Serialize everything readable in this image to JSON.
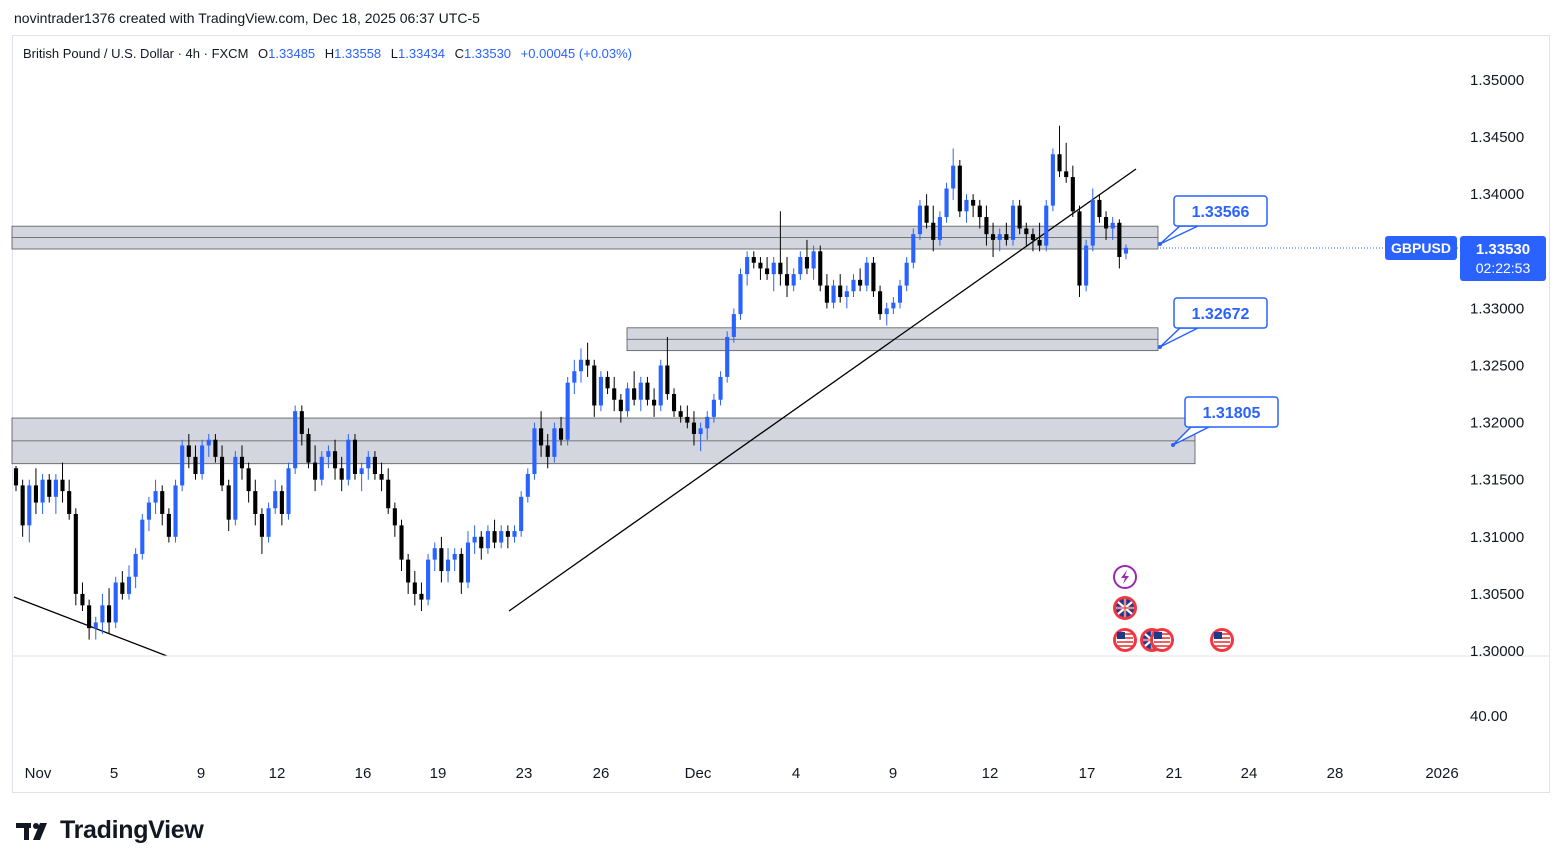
{
  "header": {
    "credit": "novintrader1376 created with TradingView.com, Dec 18, 2025 06:37 UTC-5"
  },
  "legend": {
    "symbol_desc": "British Pound / U.S. Dollar · 4h · FXCM",
    "open_label": "O",
    "open": "1.33485",
    "high_label": "H",
    "high": "1.33558",
    "low_label": "L",
    "low": "1.33434",
    "close_label": "C",
    "close": "1.33530",
    "change": "+0.00045 (+0.03%)"
  },
  "price_axis": {
    "ticks": [
      "1.35000",
      "1.34500",
      "1.34000",
      "1.33500",
      "1.33000",
      "1.32500",
      "1.32000",
      "1.31500",
      "1.31000",
      "1.30500",
      "1.30000"
    ],
    "indicator_tick": "40.00"
  },
  "last_price": {
    "symbol": "GBPUSD",
    "price": "1.33530",
    "countdown": "02:22:53"
  },
  "time_axis": [
    "Nov",
    "5",
    "9",
    "12",
    "16",
    "19",
    "23",
    "26",
    "Dec",
    "4",
    "9",
    "12",
    "17",
    "21",
    "24",
    "28",
    "2026"
  ],
  "annotations": [
    {
      "label": "1.33566",
      "value": 1.33566
    },
    {
      "label": "1.32672",
      "value": 1.32672
    },
    {
      "label": "1.31805",
      "value": 1.31805
    }
  ],
  "zones": [
    {
      "name": "upper-resistance-zone",
      "top": 1.3372,
      "bottom": 1.3352
    },
    {
      "name": "middle-support-zone",
      "top": 1.3283,
      "bottom": 1.3263
    },
    {
      "name": "lower-support-zone",
      "top": 1.3204,
      "bottom": 1.3164
    }
  ],
  "event_icons": [
    "lightning-icon",
    "uk-flag-icon",
    "us-flag-icon",
    "uk-flag-icon",
    "us-flag-icon",
    "us-flag-icon"
  ],
  "brand": {
    "name": "TradingView"
  },
  "colors": {
    "up": "#2962ff",
    "down": "#000000",
    "accent": "#2962ff",
    "zone": "#d1d4dc"
  },
  "chart_data": {
    "type": "candlestick",
    "title": "British Pound / U.S. Dollar · 4h · FXCM",
    "ylim": [
      1.2975,
      1.3525
    ],
    "ohlc": [
      [
        1.316,
        1.3162,
        1.314,
        1.3145
      ],
      [
        1.3145,
        1.315,
        1.31,
        1.311
      ],
      [
        1.311,
        1.315,
        1.3095,
        1.3145
      ],
      [
        1.3145,
        1.316,
        1.312,
        1.313
      ],
      [
        1.313,
        1.3155,
        1.312,
        1.315
      ],
      [
        1.315,
        1.3155,
        1.313,
        1.3135
      ],
      [
        1.3135,
        1.3155,
        1.312,
        1.315
      ],
      [
        1.315,
        1.3165,
        1.313,
        1.314
      ],
      [
        1.314,
        1.315,
        1.3115,
        1.312
      ],
      [
        1.312,
        1.3125,
        1.304,
        1.305
      ],
      [
        1.305,
        1.306,
        1.3035,
        1.304
      ],
      [
        1.304,
        1.3045,
        1.301,
        1.302
      ],
      [
        1.302,
        1.303,
        1.301,
        1.3025
      ],
      [
        1.3025,
        1.305,
        1.3015,
        1.304
      ],
      [
        1.304,
        1.3055,
        1.3015,
        1.3025
      ],
      [
        1.3025,
        1.3065,
        1.302,
        1.306
      ],
      [
        1.306,
        1.307,
        1.3045,
        1.305
      ],
      [
        1.305,
        1.3075,
        1.3045,
        1.3065
      ],
      [
        1.3065,
        1.309,
        1.3055,
        1.3085
      ],
      [
        1.3085,
        1.312,
        1.308,
        1.3115
      ],
      [
        1.3115,
        1.3135,
        1.3105,
        1.313
      ],
      [
        1.313,
        1.315,
        1.312,
        1.314
      ],
      [
        1.314,
        1.3145,
        1.311,
        1.312
      ],
      [
        1.312,
        1.3125,
        1.3095,
        1.31
      ],
      [
        1.31,
        1.315,
        1.3095,
        1.3145
      ],
      [
        1.3145,
        1.3185,
        1.314,
        1.318
      ],
      [
        1.318,
        1.319,
        1.316,
        1.317
      ],
      [
        1.317,
        1.318,
        1.315,
        1.3155
      ],
      [
        1.3155,
        1.3185,
        1.315,
        1.318
      ],
      [
        1.318,
        1.319,
        1.317,
        1.3185
      ],
      [
        1.3185,
        1.319,
        1.3165,
        1.317
      ],
      [
        1.317,
        1.318,
        1.314,
        1.3145
      ],
      [
        1.3145,
        1.315,
        1.3105,
        1.3115
      ],
      [
        1.3115,
        1.3175,
        1.311,
        1.317
      ],
      [
        1.317,
        1.318,
        1.315,
        1.316
      ],
      [
        1.316,
        1.3165,
        1.313,
        1.314
      ],
      [
        1.314,
        1.315,
        1.311,
        1.312
      ],
      [
        1.312,
        1.3125,
        1.3085,
        1.31
      ],
      [
        1.31,
        1.313,
        1.3095,
        1.3125
      ],
      [
        1.3125,
        1.315,
        1.312,
        1.314
      ],
      [
        1.314,
        1.3145,
        1.311,
        1.312
      ],
      [
        1.312,
        1.3165,
        1.3115,
        1.316
      ],
      [
        1.316,
        1.3215,
        1.3155,
        1.321
      ],
      [
        1.321,
        1.3215,
        1.318,
        1.319
      ],
      [
        1.319,
        1.3195,
        1.316,
        1.3165
      ],
      [
        1.3165,
        1.318,
        1.314,
        1.315
      ],
      [
        1.315,
        1.3175,
        1.3145,
        1.317
      ],
      [
        1.317,
        1.318,
        1.316,
        1.3175
      ],
      [
        1.3175,
        1.3185,
        1.315,
        1.316
      ],
      [
        1.316,
        1.317,
        1.314,
        1.315
      ],
      [
        1.315,
        1.319,
        1.3145,
        1.3185
      ],
      [
        1.3185,
        1.319,
        1.315,
        1.3155
      ],
      [
        1.3155,
        1.3165,
        1.314,
        1.316
      ],
      [
        1.316,
        1.3175,
        1.315,
        1.317
      ],
      [
        1.317,
        1.3175,
        1.315,
        1.3155
      ],
      [
        1.3155,
        1.3165,
        1.314,
        1.315
      ],
      [
        1.315,
        1.316,
        1.312,
        1.3125
      ],
      [
        1.3125,
        1.313,
        1.31,
        1.311
      ],
      [
        1.311,
        1.3115,
        1.307,
        1.308
      ],
      [
        1.308,
        1.3085,
        1.305,
        1.306
      ],
      [
        1.306,
        1.307,
        1.304,
        1.305
      ],
      [
        1.305,
        1.306,
        1.3035,
        1.3045
      ],
      [
        1.3045,
        1.3085,
        1.304,
        1.308
      ],
      [
        1.308,
        1.3095,
        1.307,
        1.309
      ],
      [
        1.309,
        1.31,
        1.306,
        1.307
      ],
      [
        1.307,
        1.309,
        1.306,
        1.308
      ],
      [
        1.308,
        1.309,
        1.307,
        1.3085
      ],
      [
        1.3085,
        1.309,
        1.305,
        1.306
      ],
      [
        1.306,
        1.3105,
        1.3055,
        1.3095
      ],
      [
        1.3095,
        1.311,
        1.3085,
        1.31
      ],
      [
        1.31,
        1.3105,
        1.308,
        1.309
      ],
      [
        1.309,
        1.311,
        1.3085,
        1.3105
      ],
      [
        1.3105,
        1.3115,
        1.309,
        1.3095
      ],
      [
        1.3095,
        1.311,
        1.309,
        1.3105
      ],
      [
        1.3105,
        1.311,
        1.309,
        1.31
      ],
      [
        1.31,
        1.311,
        1.3095,
        1.3105
      ],
      [
        1.3105,
        1.314,
        1.31,
        1.3135
      ],
      [
        1.3135,
        1.316,
        1.313,
        1.3155
      ],
      [
        1.3155,
        1.32,
        1.315,
        1.3195
      ],
      [
        1.3195,
        1.321,
        1.317,
        1.318
      ],
      [
        1.318,
        1.319,
        1.316,
        1.317
      ],
      [
        1.317,
        1.32,
        1.3165,
        1.3195
      ],
      [
        1.3195,
        1.3205,
        1.318,
        1.3185
      ],
      [
        1.3185,
        1.324,
        1.318,
        1.3235
      ],
      [
        1.3235,
        1.3255,
        1.3225,
        1.3245
      ],
      [
        1.3245,
        1.3265,
        1.3235,
        1.3255
      ],
      [
        1.3255,
        1.327,
        1.324,
        1.325
      ],
      [
        1.325,
        1.3255,
        1.3205,
        1.3215
      ],
      [
        1.3215,
        1.3245,
        1.321,
        1.324
      ],
      [
        1.324,
        1.3245,
        1.3225,
        1.323
      ],
      [
        1.323,
        1.324,
        1.321,
        1.322
      ],
      [
        1.322,
        1.3225,
        1.32,
        1.321
      ],
      [
        1.321,
        1.3235,
        1.3205,
        1.323
      ],
      [
        1.323,
        1.3245,
        1.3215,
        1.322
      ],
      [
        1.322,
        1.324,
        1.321,
        1.3235
      ],
      [
        1.3235,
        1.324,
        1.3215,
        1.322
      ],
      [
        1.322,
        1.323,
        1.3205,
        1.3215
      ],
      [
        1.3215,
        1.3255,
        1.321,
        1.325
      ],
      [
        1.325,
        1.3275,
        1.322,
        1.3225
      ],
      [
        1.3225,
        1.323,
        1.3205,
        1.321
      ],
      [
        1.321,
        1.3215,
        1.32,
        1.3205
      ],
      [
        1.3205,
        1.3215,
        1.3195,
        1.32
      ],
      [
        1.32,
        1.321,
        1.318,
        1.319
      ],
      [
        1.319,
        1.32,
        1.3175,
        1.3195
      ],
      [
        1.3195,
        1.321,
        1.3185,
        1.3205
      ],
      [
        1.3205,
        1.3225,
        1.32,
        1.322
      ],
      [
        1.322,
        1.3245,
        1.3215,
        1.324
      ],
      [
        1.324,
        1.328,
        1.3235,
        1.3275
      ],
      [
        1.3275,
        1.33,
        1.327,
        1.3295
      ],
      [
        1.3295,
        1.3335,
        1.329,
        1.333
      ],
      [
        1.333,
        1.335,
        1.332,
        1.3345
      ],
      [
        1.3345,
        1.335,
        1.3335,
        1.334
      ],
      [
        1.334,
        1.3345,
        1.3325,
        1.3335
      ],
      [
        1.3335,
        1.3345,
        1.3325,
        1.333
      ],
      [
        1.333,
        1.3345,
        1.3315,
        1.334
      ],
      [
        1.334,
        1.3385,
        1.332,
        1.333
      ],
      [
        1.333,
        1.3345,
        1.331,
        1.332
      ],
      [
        1.332,
        1.3335,
        1.3315,
        1.333
      ],
      [
        1.333,
        1.335,
        1.3325,
        1.3345
      ],
      [
        1.3345,
        1.336,
        1.333,
        1.3335
      ],
      [
        1.3335,
        1.3355,
        1.3325,
        1.335
      ],
      [
        1.335,
        1.3355,
        1.3315,
        1.332
      ],
      [
        1.332,
        1.333,
        1.33,
        1.3305
      ],
      [
        1.3305,
        1.3325,
        1.33,
        1.332
      ],
      [
        1.332,
        1.333,
        1.3305,
        1.331
      ],
      [
        1.331,
        1.332,
        1.33,
        1.3315
      ],
      [
        1.3315,
        1.333,
        1.331,
        1.3325
      ],
      [
        1.3325,
        1.3335,
        1.3315,
        1.332
      ],
      [
        1.332,
        1.3345,
        1.3315,
        1.334
      ],
      [
        1.334,
        1.3345,
        1.331,
        1.3315
      ],
      [
        1.3315,
        1.332,
        1.329,
        1.3295
      ],
      [
        1.3295,
        1.3305,
        1.3285,
        1.33
      ],
      [
        1.33,
        1.331,
        1.3295,
        1.3305
      ],
      [
        1.3305,
        1.3325,
        1.33,
        1.332
      ],
      [
        1.332,
        1.3345,
        1.3315,
        1.334
      ],
      [
        1.334,
        1.337,
        1.3335,
        1.3365
      ],
      [
        1.3365,
        1.3395,
        1.336,
        1.339
      ],
      [
        1.339,
        1.34,
        1.337,
        1.3375
      ],
      [
        1.3375,
        1.339,
        1.335,
        1.336
      ],
      [
        1.336,
        1.3385,
        1.3355,
        1.338
      ],
      [
        1.338,
        1.341,
        1.3375,
        1.3405
      ],
      [
        1.3405,
        1.344,
        1.3395,
        1.3425
      ],
      [
        1.3425,
        1.343,
        1.338,
        1.3385
      ],
      [
        1.3385,
        1.34,
        1.3375,
        1.3395
      ],
      [
        1.3395,
        1.34,
        1.338,
        1.339
      ],
      [
        1.339,
        1.3395,
        1.337,
        1.338
      ],
      [
        1.338,
        1.339,
        1.3355,
        1.3365
      ],
      [
        1.3365,
        1.3375,
        1.3345,
        1.336
      ],
      [
        1.336,
        1.337,
        1.335,
        1.3365
      ],
      [
        1.3365,
        1.3375,
        1.3355,
        1.336
      ],
      [
        1.336,
        1.3395,
        1.3355,
        1.339
      ],
      [
        1.339,
        1.3395,
        1.3365,
        1.337
      ],
      [
        1.337,
        1.3375,
        1.3355,
        1.3365
      ],
      [
        1.3365,
        1.337,
        1.335,
        1.336
      ],
      [
        1.336,
        1.3375,
        1.335,
        1.3355
      ],
      [
        1.3355,
        1.3395,
        1.335,
        1.339
      ],
      [
        1.339,
        1.344,
        1.3385,
        1.3435
      ],
      [
        1.3435,
        1.346,
        1.3415,
        1.342
      ],
      [
        1.342,
        1.3445,
        1.341,
        1.3415
      ],
      [
        1.3415,
        1.3425,
        1.338,
        1.3385
      ],
      [
        1.3385,
        1.339,
        1.331,
        1.332
      ],
      [
        1.332,
        1.336,
        1.3315,
        1.3355
      ],
      [
        1.3355,
        1.3405,
        1.335,
        1.3395
      ],
      [
        1.3395,
        1.34,
        1.3375,
        1.338
      ],
      [
        1.338,
        1.3385,
        1.336,
        1.337
      ],
      [
        1.337,
        1.338,
        1.336,
        1.3375
      ],
      [
        1.3375,
        1.3378,
        1.3335,
        1.3345
      ],
      [
        1.3348,
        1.3356,
        1.3343,
        1.3353
      ]
    ]
  }
}
